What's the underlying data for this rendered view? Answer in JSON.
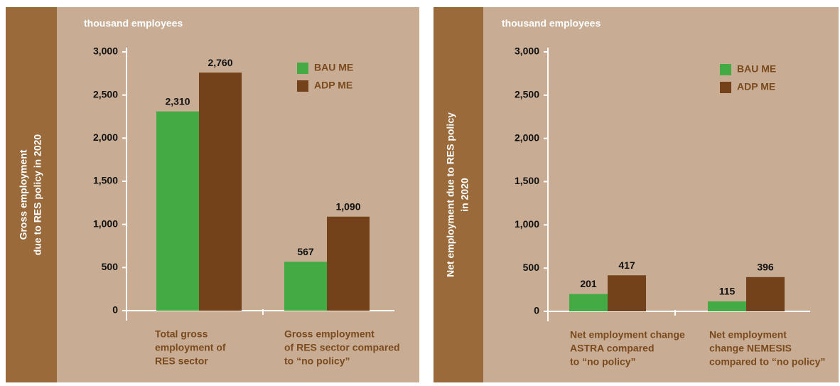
{
  "chart_data": [
    {
      "type": "bar",
      "title": [
        "Gross employment",
        "due to RES policy in 2020"
      ],
      "ylabel": "thousand employees",
      "categories": [
        [
          "Total gross",
          "employment of",
          "RES sector"
        ],
        [
          "Gross employment",
          "of RES sector compared",
          "to “no policy”"
        ]
      ],
      "series": [
        {
          "name": "BAU ME",
          "color": "#44aa44",
          "values": [
            2310,
            567
          ],
          "value_labels": [
            "2,310",
            "567"
          ]
        },
        {
          "name": "ADP ME",
          "color": "#74421a",
          "values": [
            2760,
            1090
          ],
          "value_labels": [
            "2,760",
            "1,090"
          ]
        }
      ],
      "ylim": [
        0,
        3000
      ],
      "yticks": [
        0,
        500,
        {
          "value": 1000,
          "label": "1,000"
        },
        {
          "value": 1500,
          "label": "1,500"
        },
        {
          "value": 2000,
          "label": "2,000"
        },
        {
          "value": 2500,
          "label": "2,500"
        },
        {
          "value": 3000,
          "label": "3,000"
        }
      ]
    },
    {
      "type": "bar",
      "title": [
        "Net employment due to RES policy",
        "in 2020"
      ],
      "ylabel": "thousand employees",
      "categories": [
        [
          "Net employment change",
          "ASTRA compared",
          "to “no policy”"
        ],
        [
          "Net employment",
          "change NEMESIS",
          "compared to “no policy”"
        ]
      ],
      "series": [
        {
          "name": "BAU ME",
          "color": "#44aa44",
          "values": [
            201,
            115
          ]
        },
        {
          "name": "ADP ME",
          "color": "#74421a",
          "values": [
            417,
            396
          ]
        }
      ],
      "ylim": [
        0,
        3000
      ],
      "yticks": [
        0,
        500,
        {
          "value": 1000,
          "label": "1,000"
        },
        {
          "value": 1500,
          "label": "1,500"
        },
        {
          "value": 2000,
          "label": "2,000"
        },
        {
          "value": 2500,
          "label": "2,500"
        },
        {
          "value": 3000,
          "label": "3,000"
        }
      ]
    }
  ]
}
